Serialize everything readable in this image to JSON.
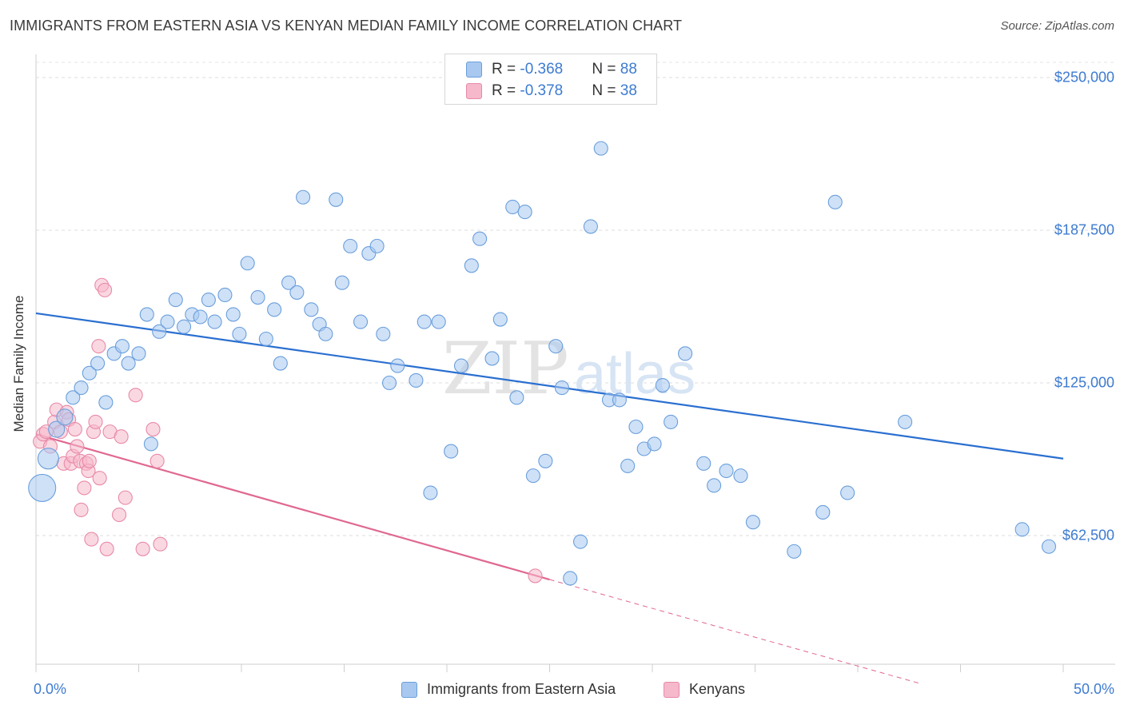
{
  "title": "IMMIGRANTS FROM EASTERN ASIA VS KENYAN MEDIAN FAMILY INCOME CORRELATION CHART",
  "source": "Source: ZipAtlas.com",
  "watermark": {
    "part1": "ZIP",
    "part2": "atlas"
  },
  "legend": {
    "r_label": "R = ",
    "n_label": "N = ",
    "blue": {
      "r": "-0.368",
      "n": "88"
    },
    "pink": {
      "r": "-0.378",
      "n": "38"
    }
  },
  "colors": {
    "blue_fill": "#a8c8f0",
    "blue_stroke": "#6a9fdc",
    "blue_line": "#2a6fd0",
    "pink_fill": "#f6b8cb",
    "pink_stroke": "#e88aa8",
    "pink_line": "#e06890",
    "accent_text": "#3d7bd1"
  },
  "chart_data": {
    "type": "scatter",
    "title": "IMMIGRANTS FROM EASTERN ASIA VS KENYAN MEDIAN FAMILY INCOME CORRELATION CHART",
    "xlabel": "",
    "ylabel": "Median Family Income",
    "xlim": [
      0,
      50
    ],
    "ylim": [
      10000,
      268000
    ],
    "y_ticks": [
      62500,
      125000,
      187500,
      250000
    ],
    "y_tick_labels": [
      "$62,500",
      "$125,000",
      "$187,500",
      "$250,000"
    ],
    "x_tick_labels": [
      "0.0%",
      "50.0%"
    ],
    "series": [
      {
        "name": "Immigrants from Eastern Asia",
        "color": "blue",
        "trend": {
          "x": [
            0,
            50
          ],
          "y": [
            153500,
            94000
          ]
        },
        "points": [
          {
            "x": 0.3,
            "y": 82000,
            "s": "xl"
          },
          {
            "x": 0.6,
            "y": 94000,
            "s": "l"
          },
          {
            "x": 1.0,
            "y": 106000,
            "s": "m"
          },
          {
            "x": 1.4,
            "y": 111000,
            "s": "m"
          },
          {
            "x": 1.8,
            "y": 119000
          },
          {
            "x": 2.2,
            "y": 123000
          },
          {
            "x": 2.6,
            "y": 129000
          },
          {
            "x": 3.0,
            "y": 133000
          },
          {
            "x": 3.4,
            "y": 117000
          },
          {
            "x": 3.8,
            "y": 137000
          },
          {
            "x": 4.2,
            "y": 140000
          },
          {
            "x": 4.5,
            "y": 133000
          },
          {
            "x": 5.0,
            "y": 137000
          },
          {
            "x": 5.4,
            "y": 153000
          },
          {
            "x": 5.6,
            "y": 100000
          },
          {
            "x": 6.0,
            "y": 146000
          },
          {
            "x": 6.4,
            "y": 150000
          },
          {
            "x": 6.8,
            "y": 159000
          },
          {
            "x": 7.2,
            "y": 148000
          },
          {
            "x": 7.6,
            "y": 153000
          },
          {
            "x": 8.0,
            "y": 152000
          },
          {
            "x": 8.4,
            "y": 159000
          },
          {
            "x": 8.7,
            "y": 150000
          },
          {
            "x": 9.2,
            "y": 161000
          },
          {
            "x": 9.6,
            "y": 153000
          },
          {
            "x": 9.9,
            "y": 145000
          },
          {
            "x": 10.3,
            "y": 174000
          },
          {
            "x": 10.8,
            "y": 160000
          },
          {
            "x": 11.2,
            "y": 143000
          },
          {
            "x": 11.6,
            "y": 155000
          },
          {
            "x": 11.9,
            "y": 133000
          },
          {
            "x": 12.3,
            "y": 166000
          },
          {
            "x": 12.7,
            "y": 162000
          },
          {
            "x": 13.0,
            "y": 201000
          },
          {
            "x": 13.4,
            "y": 155000
          },
          {
            "x": 13.8,
            "y": 149000
          },
          {
            "x": 14.1,
            "y": 145000
          },
          {
            "x": 14.6,
            "y": 200000
          },
          {
            "x": 14.9,
            "y": 166000
          },
          {
            "x": 15.3,
            "y": 181000
          },
          {
            "x": 15.8,
            "y": 150000
          },
          {
            "x": 16.2,
            "y": 178000
          },
          {
            "x": 16.6,
            "y": 181000
          },
          {
            "x": 16.9,
            "y": 145000
          },
          {
            "x": 17.2,
            "y": 125000
          },
          {
            "x": 17.6,
            "y": 132000
          },
          {
            "x": 18.5,
            "y": 126000
          },
          {
            "x": 18.9,
            "y": 150000
          },
          {
            "x": 19.2,
            "y": 80000
          },
          {
            "x": 19.6,
            "y": 150000
          },
          {
            "x": 20.2,
            "y": 97000
          },
          {
            "x": 20.7,
            "y": 132000
          },
          {
            "x": 21.2,
            "y": 173000
          },
          {
            "x": 21.6,
            "y": 184000
          },
          {
            "x": 22.2,
            "y": 135000
          },
          {
            "x": 22.6,
            "y": 151000
          },
          {
            "x": 23.2,
            "y": 197000
          },
          {
            "x": 23.4,
            "y": 119000
          },
          {
            "x": 23.8,
            "y": 195000
          },
          {
            "x": 24.2,
            "y": 87000
          },
          {
            "x": 24.8,
            "y": 93000
          },
          {
            "x": 25.3,
            "y": 140000
          },
          {
            "x": 25.6,
            "y": 123000
          },
          {
            "x": 26.0,
            "y": 45000
          },
          {
            "x": 26.5,
            "y": 60000
          },
          {
            "x": 27.0,
            "y": 189000
          },
          {
            "x": 27.5,
            "y": 221000
          },
          {
            "x": 27.9,
            "y": 118000
          },
          {
            "x": 28.4,
            "y": 118000
          },
          {
            "x": 28.8,
            "y": 91000
          },
          {
            "x": 29.2,
            "y": 107000
          },
          {
            "x": 29.6,
            "y": 98000
          },
          {
            "x": 30.1,
            "y": 100000
          },
          {
            "x": 30.5,
            "y": 124000
          },
          {
            "x": 30.9,
            "y": 109000
          },
          {
            "x": 31.6,
            "y": 137000
          },
          {
            "x": 32.5,
            "y": 92000
          },
          {
            "x": 33.0,
            "y": 83000
          },
          {
            "x": 33.6,
            "y": 89000
          },
          {
            "x": 34.3,
            "y": 87000
          },
          {
            "x": 34.9,
            "y": 68000
          },
          {
            "x": 36.9,
            "y": 56000
          },
          {
            "x": 38.3,
            "y": 72000
          },
          {
            "x": 38.9,
            "y": 199000
          },
          {
            "x": 39.5,
            "y": 80000
          },
          {
            "x": 42.3,
            "y": 109000
          },
          {
            "x": 48.0,
            "y": 65000
          },
          {
            "x": 49.3,
            "y": 58000
          }
        ]
      },
      {
        "name": "Kenyans",
        "color": "pink",
        "trend": {
          "x": [
            0,
            25
          ],
          "y": [
            104000,
            44500
          ],
          "dashed_to": {
            "x": 43,
            "y": 2000
          }
        },
        "points": [
          {
            "x": 0.2,
            "y": 101000
          },
          {
            "x": 0.35,
            "y": 104000
          },
          {
            "x": 0.5,
            "y": 105000
          },
          {
            "x": 0.7,
            "y": 99000
          },
          {
            "x": 0.9,
            "y": 109000
          },
          {
            "x": 1.0,
            "y": 114000
          },
          {
            "x": 1.2,
            "y": 105000
          },
          {
            "x": 1.35,
            "y": 92000
          },
          {
            "x": 1.5,
            "y": 113000
          },
          {
            "x": 1.6,
            "y": 110000
          },
          {
            "x": 1.7,
            "y": 92000
          },
          {
            "x": 1.8,
            "y": 95000
          },
          {
            "x": 1.9,
            "y": 106000
          },
          {
            "x": 2.0,
            "y": 99000
          },
          {
            "x": 2.15,
            "y": 93000
          },
          {
            "x": 2.2,
            "y": 73000
          },
          {
            "x": 2.35,
            "y": 82000
          },
          {
            "x": 2.45,
            "y": 92000
          },
          {
            "x": 2.55,
            "y": 89000
          },
          {
            "x": 2.6,
            "y": 93000
          },
          {
            "x": 2.7,
            "y": 61000
          },
          {
            "x": 2.8,
            "y": 105000
          },
          {
            "x": 2.9,
            "y": 109000
          },
          {
            "x": 3.05,
            "y": 140000
          },
          {
            "x": 3.1,
            "y": 86000
          },
          {
            "x": 3.2,
            "y": 165000
          },
          {
            "x": 3.35,
            "y": 163000
          },
          {
            "x": 3.45,
            "y": 57000
          },
          {
            "x": 3.6,
            "y": 105000
          },
          {
            "x": 4.05,
            "y": 71000
          },
          {
            "x": 4.15,
            "y": 103000
          },
          {
            "x": 4.35,
            "y": 78000
          },
          {
            "x": 4.85,
            "y": 120000
          },
          {
            "x": 5.2,
            "y": 57000
          },
          {
            "x": 5.7,
            "y": 106000
          },
          {
            "x": 5.9,
            "y": 93000
          },
          {
            "x": 6.05,
            "y": 59000
          },
          {
            "x": 24.3,
            "y": 46000
          }
        ]
      }
    ]
  },
  "bottom_legend": {
    "blue_label": "Immigrants from Eastern Asia",
    "pink_label": "Kenyans"
  }
}
